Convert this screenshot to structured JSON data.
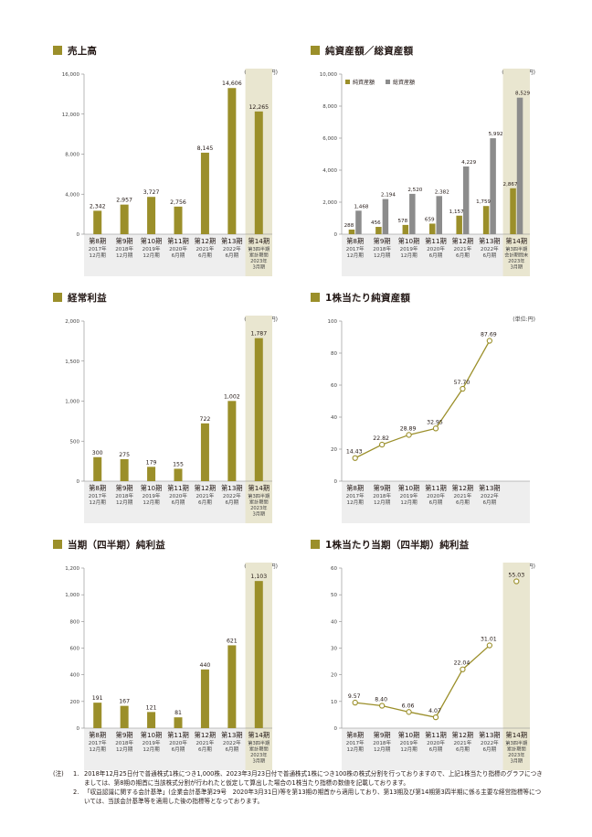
{
  "colors": {
    "olive": "#9b8f2a",
    "gray": "#8c8c8c",
    "highlight": "#e9e6d0",
    "band": "#eeeeee",
    "line": "#9b8f2a"
  },
  "periods": [
    {
      "name": "第8期",
      "year": "2017年",
      "month": "12月期"
    },
    {
      "name": "第9期",
      "year": "2018年",
      "month": "12月期"
    },
    {
      "name": "第10期",
      "year": "2019年",
      "month": "12月期"
    },
    {
      "name": "第11期",
      "year": "2020年",
      "month": "6月期"
    },
    {
      "name": "第12期",
      "year": "2021年",
      "month": "6月期"
    },
    {
      "name": "第13期",
      "year": "2022年",
      "month": "6月期"
    }
  ],
  "period14_cumulative": {
    "name": "第14期",
    "lines": [
      "第3四半期",
      "累計期間",
      "2023年",
      "3月期"
    ]
  },
  "period14_end": {
    "name": "第14期",
    "lines": [
      "第3四半期",
      "会計期間末",
      "2023年",
      "3月期"
    ]
  },
  "chart_data": [
    {
      "id": "sales",
      "type": "bar",
      "title": "売上高",
      "unit": "(単位:百万円)",
      "values": [
        2342,
        2957,
        3727,
        2756,
        8145,
        14606,
        12265
      ],
      "labels": [
        "2,342",
        "2,957",
        "3,727",
        "2,756",
        "8,145",
        "14,606",
        "12,265"
      ],
      "ylim": [
        0,
        16000
      ],
      "ticks": [
        0,
        4000,
        8000,
        12000,
        16000
      ],
      "tick_labels": [
        "0",
        "4,000",
        "8,000",
        "12,000",
        "16,000"
      ]
    },
    {
      "id": "assets",
      "type": "bar",
      "title": "純資産額／総資産額",
      "unit": "(単位:百万円)",
      "legend": [
        "純資産額",
        "総資産額"
      ],
      "series": [
        {
          "name": "純資産額",
          "values": [
            288,
            456,
            578,
            659,
            1157,
            1759,
            2867
          ],
          "labels": [
            "288",
            "456",
            "578",
            "659",
            "1,157",
            "1,759",
            "2,867"
          ]
        },
        {
          "name": "総資産額",
          "values": [
            1468,
            2194,
            2520,
            2382,
            4229,
            5992,
            8529
          ],
          "labels": [
            "1,468",
            "2,194",
            "2,520",
            "2,382",
            "4,229",
            "5,992",
            "8,529"
          ]
        }
      ],
      "ylim": [
        0,
        10000
      ],
      "ticks": [
        0,
        2000,
        4000,
        6000,
        8000,
        10000
      ],
      "tick_labels": [
        "0",
        "2,000",
        "4,000",
        "6,000",
        "8,000",
        "10,000"
      ]
    },
    {
      "id": "ordinary",
      "type": "bar",
      "title": "経常利益",
      "unit": "(単位:百万円)",
      "values": [
        300,
        275,
        179,
        155,
        722,
        1002,
        1787
      ],
      "labels": [
        "300",
        "275",
        "179",
        "155",
        "722",
        "1,002",
        "1,787"
      ],
      "ylim": [
        0,
        2000
      ],
      "ticks": [
        0,
        500,
        1000,
        1500,
        2000
      ],
      "tick_labels": [
        "0",
        "500",
        "1,000",
        "1,500",
        "2,000"
      ]
    },
    {
      "id": "bps",
      "type": "line",
      "title": "1株当たり純資産額",
      "unit": "(単位:円)",
      "values": [
        14.43,
        22.82,
        28.89,
        32.95,
        57.7,
        87.69
      ],
      "labels": [
        "14.43",
        "22.82",
        "28.89",
        "32.95",
        "57.70",
        "87.69"
      ],
      "ylim": [
        0,
        100
      ],
      "ticks": [
        0,
        20,
        40,
        60,
        80,
        100
      ],
      "tick_labels": [
        "0",
        "20",
        "40",
        "60",
        "80",
        "100"
      ]
    },
    {
      "id": "net",
      "type": "bar",
      "title": "当期（四半期）純利益",
      "unit": "(単位:百万円)",
      "values": [
        191,
        167,
        121,
        81,
        440,
        621,
        1103
      ],
      "labels": [
        "191",
        "167",
        "121",
        "81",
        "440",
        "621",
        "1,103"
      ],
      "ylim": [
        0,
        1200
      ],
      "ticks": [
        0,
        200,
        400,
        600,
        800,
        1000,
        1200
      ],
      "tick_labels": [
        "0",
        "200",
        "400",
        "600",
        "800",
        "1,000",
        "1,200"
      ]
    },
    {
      "id": "eps",
      "type": "line",
      "title": "1株当たり当期（四半期）純利益",
      "unit": "(単位:円)",
      "values": [
        9.57,
        8.4,
        6.06,
        4.07,
        22.04,
        31.01
      ],
      "labels": [
        "9.57",
        "8.40",
        "6.06",
        "4.07",
        "22.04",
        "31.01"
      ],
      "extra_point": {
        "value": 55.03,
        "label": "55.03"
      },
      "ylim": [
        0,
        60
      ],
      "ticks": [
        0,
        10,
        20,
        30,
        40,
        50,
        60
      ],
      "tick_labels": [
        "0",
        "10",
        "20",
        "30",
        "40",
        "50",
        "60"
      ]
    }
  ],
  "notes": {
    "head": "(注)",
    "items": [
      {
        "num": "1.",
        "text": "2018年12月25日付で普通株式1株につき1,000株、2023年3月23日付で普通株式1株につき100株の株式分割を行っておりますので、上記1株当たり指標のグラフにつきましては、第8期の期首に当該株式分割が行われたと仮定して算出した場合の1株当たり指標の数値を記載しております。"
      },
      {
        "num": "2.",
        "text": "「収益認識に関する会計基準」(企業会計基準第29号　2020年3月31日)等を第13期の期首から適用しており、第13期及び第14期第3四半期に係る主要な経営指標等については、当該会計基準等を適用した後の指標等となっております。"
      }
    ]
  }
}
